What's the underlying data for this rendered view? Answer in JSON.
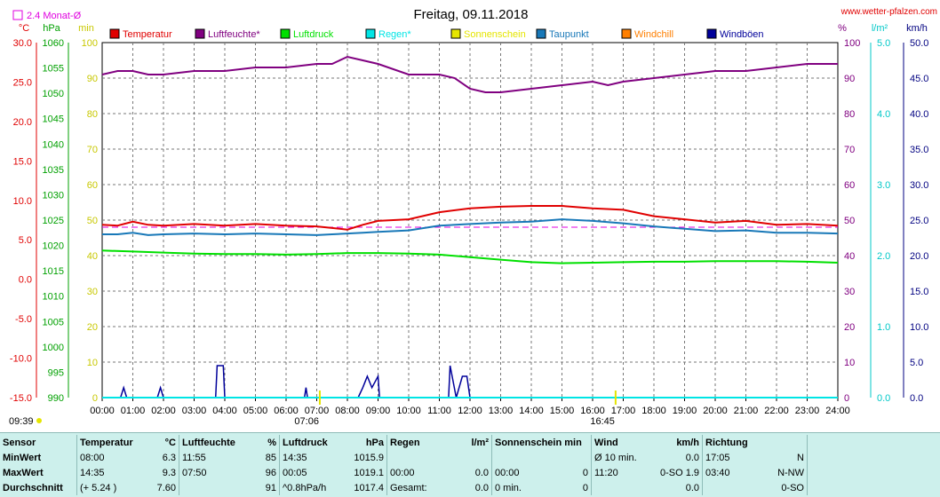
{
  "header": {
    "date": "Freitag, 09.11.2018",
    "site": "www.wetter-pfalzen.com",
    "rain_avg_legend": "2.4 Monat-Ø",
    "sunrise": "07:06",
    "sunset": "16:45",
    "left_time": "09:39"
  },
  "units": {
    "temp": "°C",
    "pressure": "hPa",
    "sun": "min",
    "humidity": "%",
    "rain": "l/m²",
    "wind": "km/h"
  },
  "colors": {
    "temperature": "#e00000",
    "humidity": "#800080",
    "pressure": "#00e000",
    "rain": "#00e5e5",
    "sunshine": "#e5e500",
    "dewpoint": "#1878b8",
    "windchill": "#ff7f00",
    "gusts": "#00009a",
    "grid": "#777777",
    "panel": "#cdf0ec"
  },
  "legend": [
    {
      "label": "Temperatur",
      "color": "#e00000"
    },
    {
      "label": "Luftfeuchte*",
      "color": "#800080"
    },
    {
      "label": "Luftdruck",
      "color": "#00e000"
    },
    {
      "label": "Regen*",
      "color": "#00e5e5"
    },
    {
      "label": "Sonnenschein",
      "color": "#e5e500"
    },
    {
      "label": "Taupunkt",
      "color": "#1878b8"
    },
    {
      "label": "Windchill",
      "color": "#ff7f00"
    },
    {
      "label": "Windböen",
      "color": "#00009a"
    }
  ],
  "axes": {
    "temp_ticks": [
      "30.0",
      "25.0",
      "20.0",
      "15.0",
      "10.0",
      "5.0",
      "0.0",
      "-5.0",
      "-10.0",
      "-15.0"
    ],
    "pressure_ticks": [
      "1060",
      "1055",
      "1050",
      "1045",
      "1040",
      "1035",
      "1030",
      "1025",
      "1020",
      "1015",
      "1010",
      "1005",
      "1000",
      "995",
      "990"
    ],
    "sun_ticks": [
      "100",
      "90",
      "80",
      "70",
      "60",
      "50",
      "40",
      "30",
      "20",
      "10",
      "0"
    ],
    "humidity_ticks": [
      "100",
      "90",
      "80",
      "70",
      "60",
      "50",
      "40",
      "30",
      "20",
      "10",
      "0"
    ],
    "rain_ticks": [
      "5.0",
      "4.0",
      "3.0",
      "2.0",
      "1.0",
      "0.0"
    ],
    "wind_ticks": [
      "50.0",
      "45.0",
      "40.0",
      "35.0",
      "30.0",
      "25.0",
      "20.0",
      "15.0",
      "10.0",
      "5.0",
      "0.0"
    ],
    "time_ticks": [
      "00:00",
      "01:00",
      "02:00",
      "03:00",
      "04:00",
      "05:00",
      "06:00",
      "07:00",
      "08:00",
      "09:00",
      "10:00",
      "11:00",
      "12:00",
      "13:00",
      "14:00",
      "15:00",
      "16:00",
      "17:00",
      "18:00",
      "19:00",
      "20:00",
      "21:00",
      "22:00",
      "23:00",
      "24:00"
    ]
  },
  "chart_data": {
    "type": "line",
    "title": "Freitag, 09.11.2018",
    "x_unit": "hours",
    "xlim": [
      0,
      24
    ],
    "temp_ylim": [
      -15,
      30
    ],
    "pressure_ylim": [
      990,
      1060
    ],
    "humidity_ylim": [
      0,
      100
    ],
    "rain_ylim": [
      0,
      5
    ],
    "wind_ylim": [
      0,
      50
    ],
    "grid": true,
    "series": [
      {
        "name": "Temperatur",
        "axis": "temp",
        "x": [
          0,
          0.5,
          1,
          1.5,
          2,
          3,
          4,
          5,
          6,
          7,
          7.5,
          8,
          8.5,
          9,
          10,
          11,
          12,
          13,
          14,
          15,
          16,
          17,
          18,
          19,
          20,
          21,
          22,
          23,
          24
        ],
        "y": [
          6.9,
          6.8,
          7.3,
          6.9,
          6.8,
          7.0,
          6.8,
          7.0,
          6.8,
          6.7,
          6.5,
          6.3,
          6.9,
          7.4,
          7.6,
          8.5,
          9.0,
          9.2,
          9.3,
          9.3,
          9.0,
          8.8,
          8.0,
          7.6,
          7.2,
          7.4,
          6.9,
          7.0,
          6.8
        ]
      },
      {
        "name": "Taupunkt",
        "axis": "temp",
        "x": [
          0,
          0.5,
          1,
          1.5,
          2,
          3,
          4,
          5,
          6,
          7,
          7.5,
          8,
          8.5,
          9,
          10,
          11,
          12,
          13,
          14,
          15,
          16,
          17,
          18,
          19,
          20,
          21,
          22,
          23,
          24
        ],
        "y": [
          5.7,
          5.7,
          5.9,
          5.6,
          5.7,
          5.8,
          5.7,
          5.8,
          5.7,
          5.6,
          5.7,
          5.8,
          5.9,
          6.0,
          6.2,
          6.8,
          7.0,
          7.2,
          7.3,
          7.6,
          7.4,
          7.1,
          6.7,
          6.4,
          6.1,
          6.2,
          5.9,
          5.9,
          5.8
        ]
      },
      {
        "name": "Luftfeuchte*",
        "axis": "humidity",
        "x": [
          0,
          0.5,
          1,
          1.5,
          2,
          3,
          4,
          5,
          6,
          7,
          7.5,
          8,
          8.5,
          9,
          10,
          11,
          11.5,
          12,
          12.5,
          13,
          14,
          15,
          16,
          16.5,
          17,
          18,
          19,
          20,
          21,
          22,
          23,
          24
        ],
        "y": [
          91,
          92,
          92,
          91,
          91,
          92,
          92,
          93,
          93,
          94,
          94,
          96,
          95,
          94,
          91,
          91,
          90,
          87,
          86,
          86,
          87,
          88,
          89,
          88,
          89,
          90,
          91,
          92,
          92,
          93,
          94,
          94
        ]
      },
      {
        "name": "Luftdruck",
        "axis": "pressure",
        "x": [
          0,
          1,
          2,
          3,
          4,
          5,
          6,
          7,
          8,
          9,
          10,
          11,
          12,
          13,
          14,
          15,
          16,
          17,
          18,
          19,
          20,
          21,
          22,
          23,
          24
        ],
        "y": [
          1019.0,
          1018.8,
          1018.6,
          1018.4,
          1018.3,
          1018.3,
          1018.2,
          1018.3,
          1018.5,
          1018.5,
          1018.4,
          1018.2,
          1017.7,
          1017.2,
          1016.7,
          1016.5,
          1016.6,
          1016.7,
          1016.8,
          1016.8,
          1016.9,
          1016.9,
          1016.9,
          1016.8,
          1016.6
        ]
      },
      {
        "name": "Windböen",
        "axis": "wind",
        "x": [
          0,
          0.6,
          0.7,
          0.8,
          1.8,
          1.9,
          2.0,
          3.7,
          3.75,
          3.95,
          4.0,
          6.6,
          6.65,
          6.7,
          8.35,
          8.5,
          8.65,
          8.8,
          9.0,
          9.05,
          9.1,
          11.3,
          11.35,
          11.55,
          11.75,
          11.9,
          12.0,
          24
        ],
        "y": [
          0,
          0,
          1.4,
          0,
          0,
          1.4,
          0,
          0,
          4.5,
          4.5,
          0,
          0,
          1.4,
          0,
          0,
          1.4,
          3.0,
          1.4,
          3.0,
          0,
          0,
          0,
          4.5,
          0,
          3.0,
          3.0,
          0,
          0
        ]
      },
      {
        "name": "Regen*",
        "axis": "rain",
        "x": [
          0,
          24
        ],
        "y": [
          0,
          0
        ]
      }
    ],
    "rain_month_avg": 2.4
  },
  "stats": {
    "headers": {
      "sensor": "Sensor",
      "temp": "Temperatur",
      "temp_unit": "°C",
      "hum": "Luftfeuchte",
      "hum_unit": "%",
      "press": "Luftdruck",
      "press_unit": "hPa",
      "rain": "Regen",
      "rain_unit": "l/m²",
      "sun": "Sonnenschein min",
      "wind": "Wind",
      "wind_unit": "km/h",
      "dir": "Richtung"
    },
    "rows": [
      {
        "label": "MinWert",
        "t_time": "08:00",
        "t_val": "6.3",
        "h_time": "11:55",
        "h_val": "85",
        "p_time": "14:35",
        "p_val": "1015.9",
        "r_time": "",
        "r_val": "",
        "s_time": "",
        "s_val": "",
        "w_time": "Ø 10 min.",
        "w_val": "0.0",
        "d_time": "17:05",
        "d_val": "N"
      },
      {
        "label": "MaxWert",
        "t_time": "14:35",
        "t_val": "9.3",
        "h_time": "07:50",
        "h_val": "96",
        "p_time": "00:05",
        "p_val": "1019.1",
        "r_time": "00:00",
        "r_val": "0.0",
        "s_time": "00:00",
        "s_val": "0",
        "w_time": "11:20",
        "w_val": "0-SO 1.9",
        "d_time": "03:40",
        "d_val": "N-NW"
      },
      {
        "label": "Durchschnitt",
        "t_time": "(+ 5.24 )",
        "t_val": "7.60",
        "h_time": "",
        "h_val": "91",
        "p_time": "^0.8hPa/h",
        "p_val": "1017.4",
        "r_time": "Gesamt:",
        "r_val": "0.0",
        "s_time": "0 min.",
        "s_val": "0",
        "w_time": "",
        "w_val": "0.0",
        "d_time": "",
        "d_val": "0-SO"
      }
    ]
  }
}
